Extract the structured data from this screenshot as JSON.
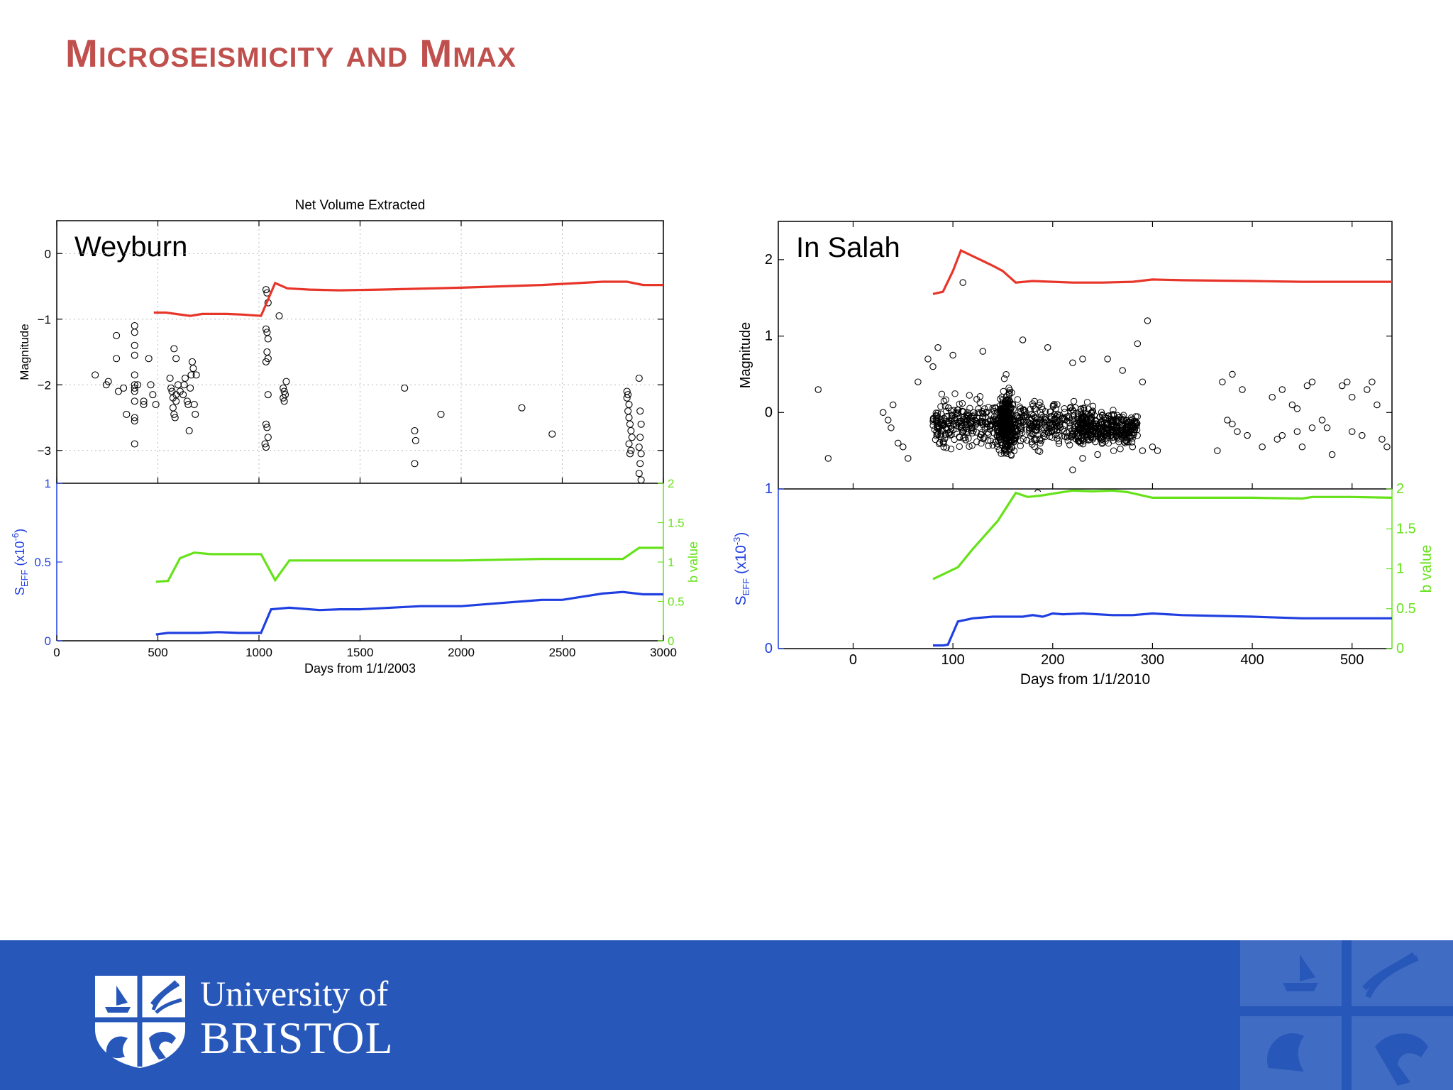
{
  "slide": {
    "title": "Microseismicity and Mmax",
    "colors": {
      "title": "#c0504d",
      "footer": "#2757b8"
    }
  },
  "footer": {
    "logo_line1": "University of",
    "logo_line2": "BRISTOL"
  },
  "chart_data": [
    {
      "id": "weyburn",
      "type": "scatter",
      "title": "Net Volume Extracted",
      "site_label": "Weyburn",
      "xlabel": "Days from 1/1/2003",
      "xlim": [
        0,
        3000
      ],
      "xticks": [
        0,
        500,
        1000,
        1500,
        2000,
        2500,
        3000
      ],
      "top_panel": {
        "ylabel": "Magnitude",
        "ylim": [
          -3.5,
          0.5
        ],
        "yticks": [
          -3,
          -2,
          -1,
          0
        ],
        "grid": true,
        "events": [
          [
            190,
            -1.85
          ],
          [
            245,
            -2.0
          ],
          [
            255,
            -1.95
          ],
          [
            295,
            -1.25
          ],
          [
            295,
            -1.6
          ],
          [
            305,
            -2.1
          ],
          [
            330,
            -2.05
          ],
          [
            345,
            -2.45
          ],
          [
            385,
            -1.1
          ],
          [
            385,
            -1.2
          ],
          [
            385,
            -1.4
          ],
          [
            385,
            -1.55
          ],
          [
            385,
            -1.85
          ],
          [
            385,
            -2.0
          ],
          [
            385,
            -2.05
          ],
          [
            385,
            -2.1
          ],
          [
            385,
            -2.25
          ],
          [
            385,
            -2.5
          ],
          [
            385,
            -2.55
          ],
          [
            385,
            -2.9
          ],
          [
            400,
            -2.0
          ],
          [
            430,
            -2.25
          ],
          [
            430,
            -2.3
          ],
          [
            455,
            -1.6
          ],
          [
            465,
            -2.0
          ],
          [
            475,
            -2.15
          ],
          [
            490,
            -2.3
          ],
          [
            560,
            -1.9
          ],
          [
            565,
            -2.05
          ],
          [
            570,
            -2.1
          ],
          [
            575,
            -2.2
          ],
          [
            575,
            -2.35
          ],
          [
            580,
            -2.45
          ],
          [
            585,
            -2.5
          ],
          [
            590,
            -2.15
          ],
          [
            590,
            -2.25
          ],
          [
            580,
            -1.45
          ],
          [
            590,
            -1.6
          ],
          [
            600,
            -2.0
          ],
          [
            610,
            -2.1
          ],
          [
            625,
            -2.15
          ],
          [
            630,
            -2.0
          ],
          [
            635,
            -1.9
          ],
          [
            645,
            -2.25
          ],
          [
            650,
            -2.3
          ],
          [
            655,
            -2.7
          ],
          [
            660,
            -2.05
          ],
          [
            665,
            -1.85
          ],
          [
            670,
            -1.65
          ],
          [
            675,
            -1.75
          ],
          [
            680,
            -2.3
          ],
          [
            685,
            -2.45
          ],
          [
            690,
            -1.85
          ],
          [
            1035,
            -0.55
          ],
          [
            1040,
            -0.6
          ],
          [
            1045,
            -0.75
          ],
          [
            1035,
            -1.15
          ],
          [
            1040,
            -1.2
          ],
          [
            1045,
            -1.3
          ],
          [
            1040,
            -1.5
          ],
          [
            1045,
            -1.6
          ],
          [
            1035,
            -1.65
          ],
          [
            1045,
            -2.15
          ],
          [
            1035,
            -2.6
          ],
          [
            1040,
            -2.65
          ],
          [
            1045,
            -2.8
          ],
          [
            1030,
            -2.9
          ],
          [
            1035,
            -2.95
          ],
          [
            1135,
            -1.95
          ],
          [
            1120,
            -2.05
          ],
          [
            1125,
            -2.1
          ],
          [
            1130,
            -2.15
          ],
          [
            1120,
            -2.2
          ],
          [
            1125,
            -2.25
          ],
          [
            1100,
            -0.95
          ],
          [
            1720,
            -2.05
          ],
          [
            1770,
            -2.7
          ],
          [
            1775,
            -2.85
          ],
          [
            1770,
            -3.2
          ],
          [
            1900,
            -2.45
          ],
          [
            2300,
            -2.35
          ],
          [
            2450,
            -2.75
          ],
          [
            2820,
            -2.1
          ],
          [
            2825,
            -2.15
          ],
          [
            2820,
            -2.2
          ],
          [
            2830,
            -2.3
          ],
          [
            2825,
            -2.4
          ],
          [
            2830,
            -2.5
          ],
          [
            2835,
            -2.6
          ],
          [
            2840,
            -2.7
          ],
          [
            2845,
            -2.8
          ],
          [
            2830,
            -2.9
          ],
          [
            2840,
            -3.0
          ],
          [
            2835,
            -3.05
          ],
          [
            2880,
            -1.9
          ],
          [
            2885,
            -2.4
          ],
          [
            2890,
            -2.6
          ],
          [
            2885,
            -2.8
          ],
          [
            2880,
            -2.95
          ],
          [
            2890,
            -3.05
          ],
          [
            2885,
            -3.2
          ],
          [
            2880,
            -3.35
          ],
          [
            2890,
            -3.45
          ]
        ],
        "mmax_line": {
          "color": "#e8352a",
          "x": [
            480,
            540,
            660,
            720,
            840,
            920,
            1010,
            1080,
            1140,
            1250,
            1400,
            1600,
            2000,
            2400,
            2700,
            2820,
            2900,
            3000
          ],
          "y": [
            -0.9,
            -0.9,
            -0.95,
            -0.92,
            -0.92,
            -0.93,
            -0.95,
            -0.45,
            -0.53,
            -0.55,
            -0.56,
            -0.55,
            -0.52,
            -0.48,
            -0.43,
            -0.43,
            -0.48,
            -0.48
          ]
        }
      },
      "bottom_panel": {
        "ylabel": "S_EFF (x10^-6)",
        "ylim": [
          0,
          1
        ],
        "yticks": [
          0,
          0.5,
          1
        ],
        "y2label": "b value",
        "y2lim": [
          0,
          2
        ],
        "y2ticks": [
          0,
          0.5,
          1,
          1.5,
          2
        ],
        "seff_line": {
          "color": "#1f3fe0",
          "x": [
            490,
            550,
            600,
            700,
            800,
            900,
            1010,
            1060,
            1150,
            1300,
            1400,
            1500,
            1800,
            2000,
            2200,
            2400,
            2500,
            2600,
            2700,
            2800,
            2900,
            3000
          ],
          "y": [
            0.04,
            0.05,
            0.05,
            0.05,
            0.055,
            0.05,
            0.05,
            0.2,
            0.21,
            0.195,
            0.2,
            0.2,
            0.22,
            0.22,
            0.24,
            0.26,
            0.26,
            0.28,
            0.3,
            0.31,
            0.295,
            0.295
          ]
        },
        "b_line": {
          "color": "#66e21a",
          "x": [
            490,
            550,
            610,
            680,
            760,
            900,
            1010,
            1080,
            1150,
            1300,
            1600,
            2000,
            2400,
            2500,
            2600,
            2800,
            2880,
            3000
          ],
          "y": [
            0.75,
            0.76,
            1.05,
            1.12,
            1.1,
            1.1,
            1.1,
            0.77,
            1.02,
            1.02,
            1.02,
            1.02,
            1.04,
            1.04,
            1.04,
            1.04,
            1.18,
            1.18
          ]
        }
      }
    },
    {
      "id": "in_salah",
      "type": "scatter",
      "site_label": "In Salah",
      "xlabel": "Days from 1/1/2010",
      "xlim": [
        -75,
        540
      ],
      "xticks": [
        0,
        100,
        200,
        300,
        400,
        500
      ],
      "top_panel": {
        "ylabel": "Magnitude",
        "ylim": [
          -1,
          2.5
        ],
        "yticks": [
          0,
          1,
          2
        ],
        "grid": false,
        "cluster_count": 1200,
        "events": [
          [
            -35,
            0.3
          ],
          [
            -25,
            -0.6
          ],
          [
            30,
            0
          ],
          [
            35,
            -0.1
          ],
          [
            38,
            -0.2
          ],
          [
            40,
            0.1
          ],
          [
            45,
            -0.4
          ],
          [
            50,
            -0.45
          ],
          [
            55,
            -0.6
          ],
          [
            65,
            0.4
          ],
          [
            75,
            0.7
          ],
          [
            80,
            0.6
          ],
          [
            85,
            0.85
          ],
          [
            100,
            0.75
          ],
          [
            110,
            1.7
          ],
          [
            130,
            0.8
          ],
          [
            170,
            0.95
          ],
          [
            195,
            0.85
          ],
          [
            220,
            0.65
          ],
          [
            230,
            0.7
          ],
          [
            255,
            0.7
          ],
          [
            270,
            0.55
          ],
          [
            285,
            0.9
          ],
          [
            290,
            0.4
          ],
          [
            295,
            1.2
          ],
          [
            300,
            -0.45
          ],
          [
            305,
            -0.5
          ],
          [
            370,
            0.4
          ],
          [
            380,
            0.5
          ],
          [
            390,
            0.3
          ],
          [
            420,
            0.2
          ],
          [
            430,
            0.3
          ],
          [
            440,
            0.1
          ],
          [
            445,
            0.05
          ],
          [
            455,
            0.35
          ],
          [
            460,
            0.4
          ],
          [
            470,
            -0.1
          ],
          [
            475,
            -0.2
          ],
          [
            490,
            0.35
          ],
          [
            495,
            0.4
          ],
          [
            500,
            0.2
          ],
          [
            515,
            0.3
          ],
          [
            520,
            0.4
          ],
          [
            525,
            0.1
          ],
          [
            530,
            -0.35
          ],
          [
            535,
            -0.45
          ],
          [
            410,
            -0.45
          ],
          [
            425,
            -0.35
          ],
          [
            430,
            -0.3
          ],
          [
            445,
            -0.25
          ],
          [
            450,
            -0.45
          ],
          [
            460,
            -0.2
          ],
          [
            480,
            -0.55
          ],
          [
            500,
            -0.25
          ],
          [
            510,
            -0.3
          ],
          [
            375,
            -0.1
          ],
          [
            365,
            -0.5
          ],
          [
            380,
            -0.15
          ],
          [
            385,
            -0.25
          ],
          [
            395,
            -0.3
          ],
          [
            240,
            -0.25
          ],
          [
            250,
            -0.35
          ],
          [
            260,
            -0.25
          ],
          [
            270,
            -0.3
          ],
          [
            280,
            -0.45
          ],
          [
            290,
            -0.5
          ],
          [
            185,
            -1.05
          ],
          [
            220,
            -0.75
          ],
          [
            230,
            -0.6
          ],
          [
            245,
            -0.55
          ]
        ],
        "mmax_line": {
          "color": "#e8352a",
          "x": [
            80,
            90,
            100,
            108,
            140,
            150,
            163,
            180,
            200,
            220,
            250,
            280,
            300,
            330,
            400,
            450,
            540
          ],
          "y": [
            1.55,
            1.58,
            1.85,
            2.12,
            1.92,
            1.85,
            1.7,
            1.72,
            1.71,
            1.7,
            1.7,
            1.71,
            1.74,
            1.73,
            1.72,
            1.71,
            1.71
          ]
        }
      },
      "bottom_panel": {
        "ylabel": "S_EFF (x10^-3)",
        "ylim": [
          0,
          1
        ],
        "yticks": [
          0,
          1
        ],
        "y2label": "b value",
        "y2lim": [
          0,
          2
        ],
        "y2ticks": [
          0,
          0.5,
          1,
          1.5,
          2
        ],
        "seff_line": {
          "color": "#1f3fe0",
          "x": [
            80,
            90,
            95,
            105,
            120,
            140,
            170,
            180,
            190,
            200,
            210,
            230,
            260,
            280,
            300,
            330,
            400,
            450,
            500,
            540
          ],
          "y": [
            0.02,
            0.02,
            0.025,
            0.17,
            0.19,
            0.2,
            0.2,
            0.21,
            0.2,
            0.22,
            0.215,
            0.22,
            0.21,
            0.21,
            0.22,
            0.21,
            0.2,
            0.19,
            0.19,
            0.19
          ]
        },
        "b_line": {
          "color": "#66e21a",
          "x": [
            80,
            105,
            120,
            145,
            163,
            175,
            190,
            205,
            220,
            240,
            260,
            275,
            300,
            400,
            450,
            460,
            500,
            540
          ],
          "y": [
            0.87,
            1.02,
            1.25,
            1.6,
            1.95,
            1.9,
            1.92,
            1.95,
            1.98,
            1.97,
            1.98,
            1.96,
            1.89,
            1.89,
            1.88,
            1.9,
            1.9,
            1.89
          ]
        }
      }
    }
  ]
}
